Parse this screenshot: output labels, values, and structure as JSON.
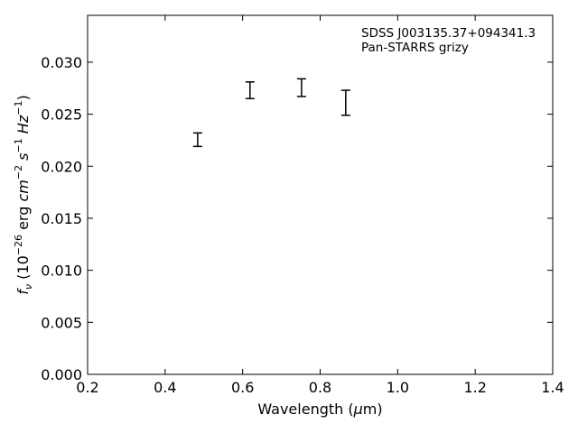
{
  "chart_data": {
    "type": "scatter",
    "title": "",
    "annotations": [
      "SDSS J003135.37+094341.3",
      "Pan-STARRS grizy"
    ],
    "xlabel": {
      "pre": "Wavelength (",
      "mu": "μ",
      "post": "m)"
    },
    "ylabel": {
      "f": "f",
      "nu": "ν",
      "open": " (10",
      "exp1": "−26",
      "erg": " erg ",
      "cm": "cm",
      "exp2": "−2",
      "s": " s",
      "exp3": "−1",
      "hz": " Hz",
      "exp4": "−1",
      "close": ")"
    },
    "xlim": [
      0.2,
      1.4
    ],
    "ylim": [
      0.0,
      0.0345
    ],
    "xticks": [
      0.2,
      0.4,
      0.6,
      0.8,
      1.0,
      1.2,
      1.4
    ],
    "xtick_labels": [
      "0.2",
      "0.4",
      "0.6",
      "0.8",
      "1.0",
      "1.2",
      "1.4"
    ],
    "yticks": [
      0.0,
      0.005,
      0.01,
      0.015,
      0.02,
      0.025,
      0.03
    ],
    "ytick_labels": [
      "0.000",
      "0.005",
      "0.010",
      "0.015",
      "0.020",
      "0.025",
      "0.030"
    ],
    "grid": false,
    "series": [
      {
        "points": [
          {
            "x": 0.484,
            "y_low": 0.0219,
            "y_high": 0.0232
          },
          {
            "x": 0.619,
            "y_low": 0.0265,
            "y_high": 0.0281
          },
          {
            "x": 0.752,
            "y_low": 0.0267,
            "y_high": 0.0284
          },
          {
            "x": 0.866,
            "y_low": 0.0249,
            "y_high": 0.0273
          }
        ]
      }
    ]
  }
}
